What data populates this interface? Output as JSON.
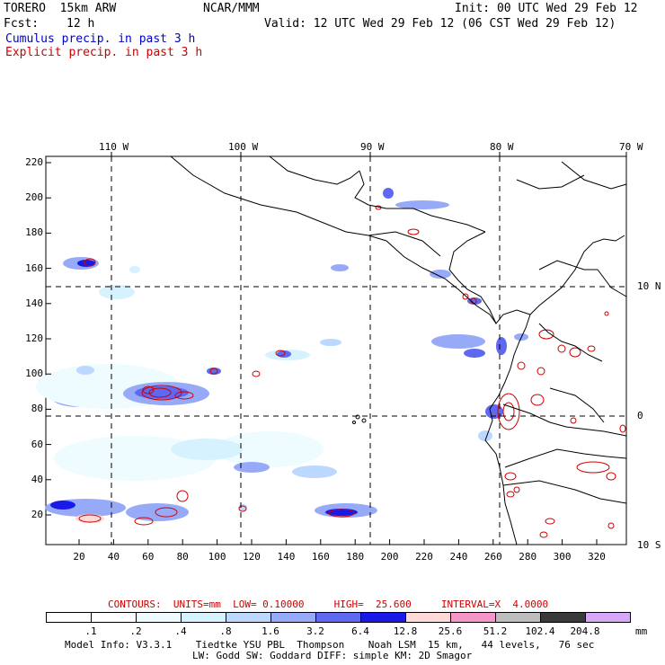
{
  "header": {
    "model": "TORERO  15km ARW",
    "org": "NCAR/MMM",
    "init": "Init: 00 UTC Wed 29 Feb 12",
    "fcst_label": "Fcst:",
    "fcst_value": "12 h",
    "valid": "Valid: 12 UTC Wed 29 Feb 12 (06 CST Wed 29 Feb 12)",
    "cumulus": "Cumulus precip. in past 3 h",
    "explicit": "Explicit precip. in past 3 h"
  },
  "axes": {
    "top_lon": [
      "110 W",
      "100 W",
      "90 W",
      "80 W",
      "70 W"
    ],
    "right_lat": [
      "10 N",
      "0",
      "10 S"
    ],
    "y_ticks": [
      "220",
      "200",
      "180",
      "160",
      "140",
      "120",
      "100",
      "80",
      "60",
      "40",
      "20"
    ],
    "x_ticks": [
      "20",
      "40",
      "60",
      "80",
      "100",
      "120",
      "140",
      "160",
      "180",
      "200",
      "220",
      "240",
      "260",
      "280",
      "300",
      "320"
    ]
  },
  "contours_info": {
    "text": "CONTOURS:  UNITS=mm  LOW= 0.10000     HIGH=  25.600     INTERVAL=X  4.0000"
  },
  "colorbar": {
    "labels": [
      ".1",
      ".2",
      ".4",
      ".8",
      "1.6",
      "3.2",
      "6.4",
      "12.8",
      "25.6",
      "51.2",
      "102.4",
      "204.8"
    ],
    "unit": "mm",
    "colors": [
      "#ffffff",
      "#ffffff",
      "#eefcff",
      "#d7f2ff",
      "#bcd8ff",
      "#96aaf7",
      "#5e68f0",
      "#1a1ae8",
      "#ffd8d8",
      "#f596c8",
      "#bdbdbd",
      "#3a3a3a",
      "#d8a8f8"
    ]
  },
  "footer": {
    "line1": "Model Info: V3.3.1    Tiedtke YSU PBL  Thompson    Noah LSM  15 km,   44 levels,   76 sec",
    "line2": "LW: Godd SW: Goddard DIFF: simple KM: 2D Smagor"
  }
}
